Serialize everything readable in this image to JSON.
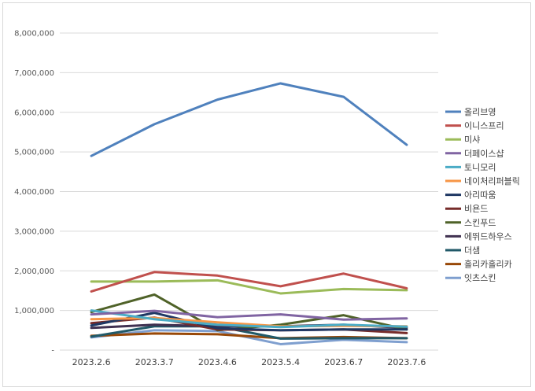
{
  "chart_data": {
    "type": "line",
    "title": "",
    "xlabel": "",
    "ylabel": "",
    "categories": [
      "2023.2.6",
      "2023.3.7",
      "2023.4.6",
      "2023.5.4",
      "2023.6.7",
      "2023.7.6"
    ],
    "ylim": [
      0,
      8000000
    ],
    "yticks": [
      0,
      1000000,
      2000000,
      3000000,
      4000000,
      5000000,
      6000000,
      7000000,
      8000000
    ],
    "ytick_labels": [
      "-",
      "1,000,000",
      "2,000,000",
      "3,000,000",
      "4,000,000",
      "5,000,000",
      "6,000,000",
      "7,000,000",
      "8,000,000"
    ],
    "grid": true,
    "legend_position": "right",
    "series": [
      {
        "name": "올리브영",
        "color": "#4f81bd",
        "values": [
          4900000,
          5700000,
          6320000,
          6730000,
          6390000,
          5180000
        ]
      },
      {
        "name": "이니스프리",
        "color": "#c0504d",
        "values": [
          1480000,
          1970000,
          1880000,
          1610000,
          1930000,
          1560000
        ]
      },
      {
        "name": "미샤",
        "color": "#9bbb59",
        "values": [
          1730000,
          1730000,
          1760000,
          1430000,
          1540000,
          1510000
        ]
      },
      {
        "name": "더페이스샵",
        "color": "#8064a2",
        "values": [
          900000,
          990000,
          830000,
          900000,
          770000,
          800000
        ]
      },
      {
        "name": "토니모리",
        "color": "#4bacc6",
        "values": [
          1000000,
          780000,
          640000,
          580000,
          640000,
          590000
        ]
      },
      {
        "name": "네이처리퍼블릭",
        "color": "#f79646",
        "values": [
          780000,
          810000,
          700000,
          600000,
          610000,
          600000
        ]
      },
      {
        "name": "아리따움",
        "color": "#1f3864",
        "values": [
          620000,
          940000,
          550000,
          500000,
          520000,
          520000
        ]
      },
      {
        "name": "비욘드",
        "color": "#772c2a",
        "values": [
          680000,
          820000,
          520000,
          500000,
          520000,
          430000
        ]
      },
      {
        "name": "스킨푸드",
        "color": "#4f6228",
        "values": [
          960000,
          1400000,
          500000,
          640000,
          880000,
          520000
        ]
      },
      {
        "name": "에뛰드하우스",
        "color": "#403151",
        "values": [
          560000,
          640000,
          600000,
          600000,
          640000,
          560000
        ]
      },
      {
        "name": "더샘",
        "color": "#215968",
        "values": [
          340000,
          600000,
          600000,
          290000,
          300000,
          300000
        ]
      },
      {
        "name": "홀리카홀리카",
        "color": "#984807",
        "values": [
          360000,
          420000,
          400000,
          300000,
          330000,
          300000
        ]
      },
      {
        "name": "잇츠스킨",
        "color": "#7f9fcf",
        "values": [
          320000,
          500000,
          480000,
          150000,
          260000,
          200000
        ]
      }
    ]
  }
}
